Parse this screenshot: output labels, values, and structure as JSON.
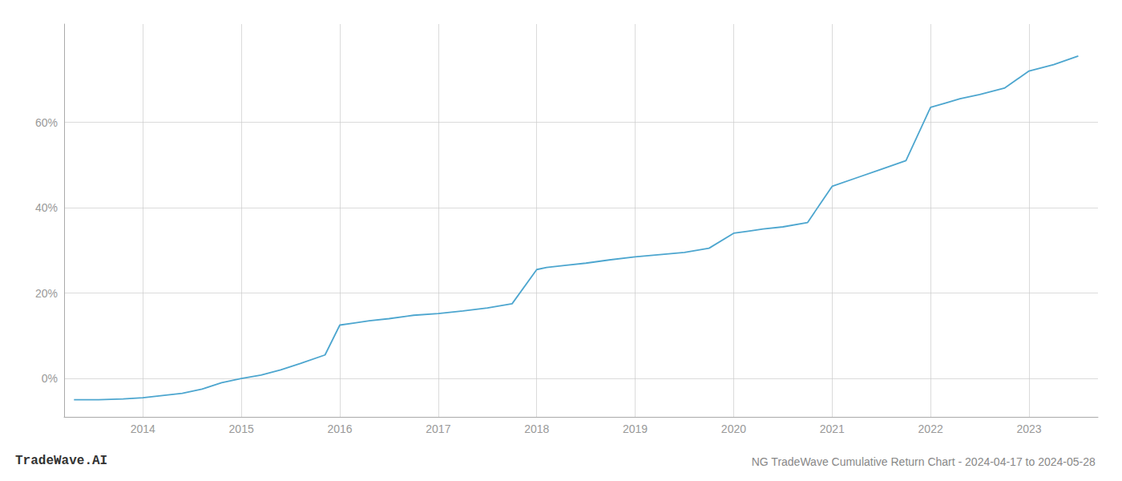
{
  "chart_data": {
    "type": "line",
    "title": "NG TradeWave Cumulative Return Chart - 2024-04-17 to 2024-05-28",
    "annotations": [
      "TradeWave.AI"
    ],
    "color": "#4da6cf",
    "x": [
      2013.3,
      2013.55,
      2013.8,
      2014.0,
      2014.2,
      2014.4,
      2014.6,
      2014.8,
      2015.0,
      2015.2,
      2015.4,
      2015.6,
      2015.85,
      2016.0,
      2016.15,
      2016.3,
      2016.5,
      2016.75,
      2017.0,
      2017.25,
      2017.5,
      2017.75,
      2018.0,
      2018.1,
      2018.3,
      2018.5,
      2018.75,
      2019.0,
      2019.25,
      2019.5,
      2019.75,
      2020.0,
      2020.15,
      2020.3,
      2020.5,
      2020.75,
      2021.0,
      2021.25,
      2021.5,
      2021.75,
      2022.0,
      2022.15,
      2022.3,
      2022.5,
      2022.75,
      2023.0,
      2023.25,
      2023.5
    ],
    "values": [
      -5,
      -5,
      -4.8,
      -4.5,
      -4.0,
      -3.5,
      -2.5,
      -1.0,
      0.0,
      0.8,
      2.0,
      3.5,
      5.5,
      12.5,
      13.0,
      13.5,
      14.0,
      14.8,
      15.2,
      15.8,
      16.5,
      17.5,
      25.5,
      26.0,
      26.5,
      27.0,
      27.8,
      28.5,
      29.0,
      29.5,
      30.5,
      34.0,
      34.5,
      35.0,
      35.5,
      36.5,
      45.0,
      47.0,
      49.0,
      51.0,
      63.5,
      64.5,
      65.5,
      66.5,
      68.0,
      72.0,
      73.5,
      75.5
    ],
    "xlim": [
      2013.2,
      2023.7
    ],
    "xticks": [
      2014,
      2015,
      2016,
      2017,
      2018,
      2019,
      2020,
      2021,
      2022,
      2023
    ],
    "ylim": [
      -9,
      83
    ],
    "yticks": [
      {
        "value": 0,
        "label": "0%"
      },
      {
        "value": 20,
        "label": "20%"
      },
      {
        "value": 40,
        "label": "40%"
      },
      {
        "value": 60,
        "label": "60%"
      }
    ],
    "grid": true
  }
}
